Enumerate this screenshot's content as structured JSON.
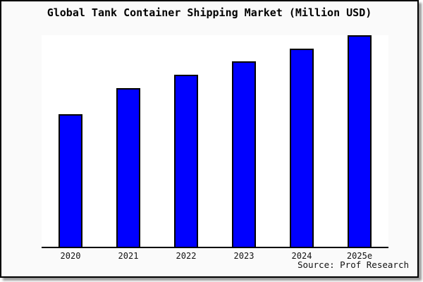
{
  "title": "Global Tank Container Shipping Market (Million USD)",
  "source_credit": "Source: Prof Research",
  "colors": {
    "bar_fill": "#0000ff",
    "bar_border": "#000000",
    "axis": "#000000",
    "background": "#fafafa",
    "plot_background": "#ffffff"
  },
  "chart_data": {
    "type": "bar",
    "title": "Global Tank Container Shipping Market (Million USD)",
    "categories": [
      "2020",
      "2021",
      "2022",
      "2023",
      "2024",
      "2025e"
    ],
    "values": [
      62.7,
      75.0,
      81.3,
      87.7,
      93.7,
      100.0
    ],
    "values_note": "Relative bar heights in % of tallest bar (2025e); y-axis has no tick labels in the source image",
    "xlabel": "",
    "ylabel": "",
    "ylim": [
      0,
      100
    ],
    "grid": false,
    "legend": false,
    "annotations": [
      "Source: Prof Research"
    ]
  }
}
